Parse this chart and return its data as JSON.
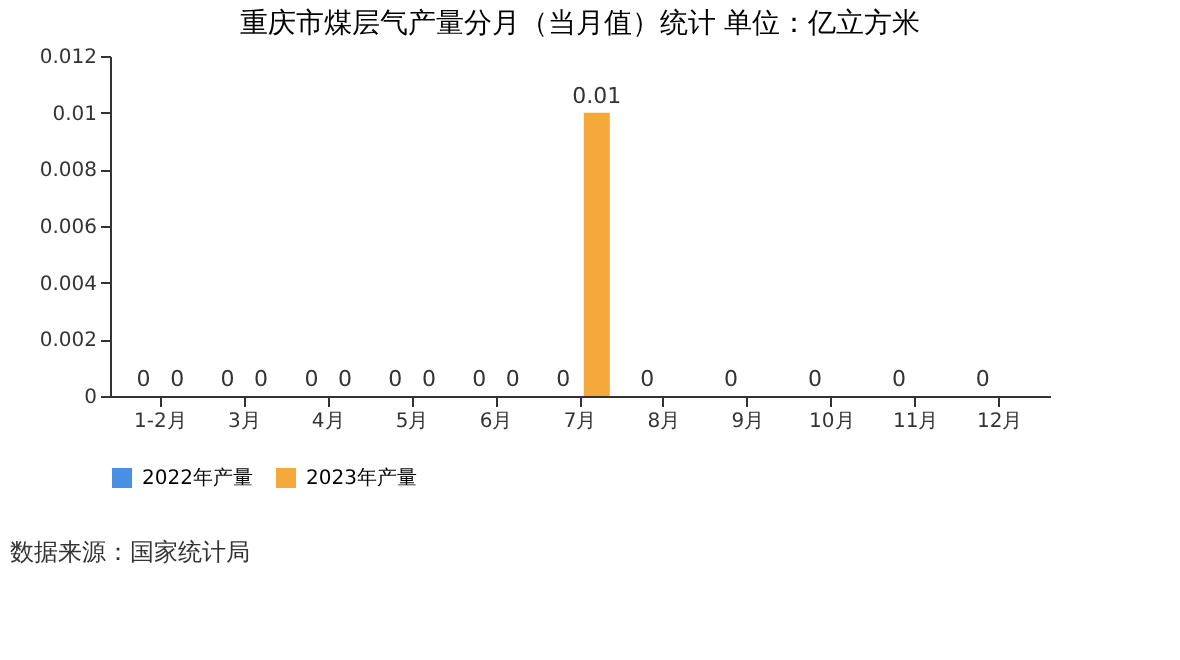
{
  "chart_data": {
    "type": "bar",
    "title": "重庆市煤层气产量分月（当月值）统计 单位：亿立方米",
    "categories": [
      "1-2月",
      "3月",
      "4月",
      "5月",
      "6月",
      "7月",
      "8月",
      "9月",
      "10月",
      "11月",
      "12月"
    ],
    "series": [
      {
        "name": "2022年产量",
        "color": "#4a90e2",
        "values": [
          0,
          0,
          0,
          0,
          0,
          0,
          0,
          0,
          0,
          0,
          0
        ]
      },
      {
        "name": "2023年产量",
        "color": "#f5a93a",
        "values": [
          0,
          0,
          0,
          0,
          0,
          0.01,
          null,
          null,
          null,
          null,
          null
        ]
      }
    ],
    "ylim": [
      0,
      0.012
    ],
    "yticks": [
      0,
      0.002,
      0.004,
      0.006,
      0.008,
      0.01,
      0.012
    ],
    "grid": false,
    "legend": "bottom",
    "data_labels": true,
    "annotations": [
      "数据来源：国家统计局"
    ]
  }
}
